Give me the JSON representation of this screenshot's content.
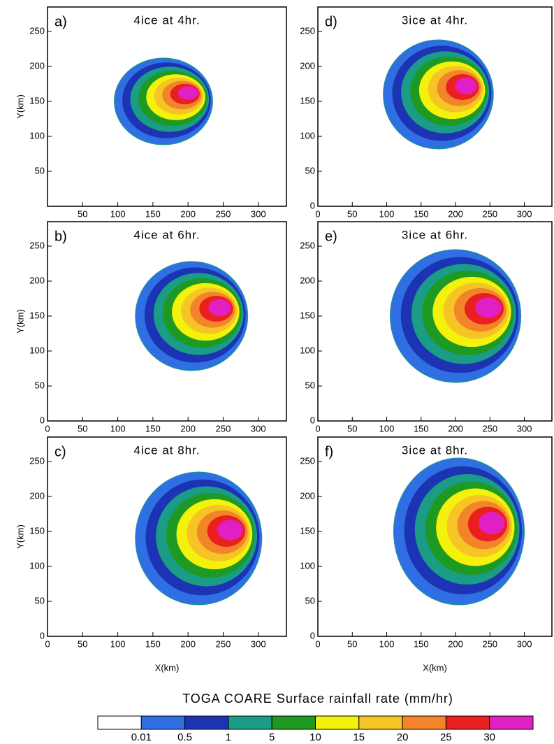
{
  "chart_data": [
    {
      "type": "contour",
      "label": "a)",
      "title": "4ice at 4hr.",
      "ylabel": "Y(km)",
      "xlim": [
        0,
        340
      ],
      "ylim": [
        0,
        285
      ],
      "xticks": [
        50,
        100,
        150,
        200,
        250,
        300
      ],
      "yticks": [
        50,
        100,
        150,
        200,
        250
      ]
    },
    {
      "type": "contour",
      "label": "b)",
      "title": "4ice at 6hr.",
      "ylabel": "Y(km)",
      "xlim": [
        0,
        340
      ],
      "ylim": [
        0,
        285
      ],
      "xticks": [
        0,
        50,
        100,
        150,
        200,
        250,
        300
      ],
      "yticks": [
        0,
        50,
        100,
        150,
        200,
        250
      ]
    },
    {
      "type": "contour",
      "label": "c)",
      "title": "4ice at 8hr.",
      "ylabel": "Y(km)",
      "xlabel": "X(km)",
      "xlim": [
        0,
        340
      ],
      "ylim": [
        0,
        285
      ],
      "xticks": [
        0,
        50,
        100,
        150,
        200,
        250,
        300
      ],
      "yticks": [
        0,
        50,
        100,
        150,
        200,
        250
      ]
    },
    {
      "type": "contour",
      "label": "d)",
      "title": "3ice at 4hr.",
      "xlim": [
        0,
        340
      ],
      "ylim": [
        0,
        285
      ],
      "xticks": [
        0,
        50,
        100,
        150,
        200,
        250,
        300
      ],
      "yticks": [
        0,
        50,
        100,
        150,
        200,
        250
      ]
    },
    {
      "type": "contour",
      "label": "e)",
      "title": "3ice at 6hr.",
      "xlim": [
        0,
        340
      ],
      "ylim": [
        0,
        285
      ],
      "xticks": [
        0,
        50,
        100,
        150,
        200,
        250,
        300
      ],
      "yticks": [
        0,
        50,
        100,
        150,
        200,
        250
      ]
    },
    {
      "type": "contour",
      "label": "f)",
      "title": "3ice at 8hr.",
      "xlabel": "X(km)",
      "xlim": [
        0,
        340
      ],
      "ylim": [
        0,
        285
      ],
      "xticks": [
        0,
        50,
        100,
        150,
        200,
        250,
        300
      ],
      "yticks": [
        0,
        50,
        100,
        150,
        200,
        250
      ]
    }
  ],
  "colorbar": {
    "title": "TOGA COARE Surface rainfall rate (mm/hr)",
    "levels": [
      0.01,
      0.5,
      1,
      5,
      10,
      15,
      20,
      25,
      30
    ],
    "colors": [
      "#ffffff",
      "#2f6fe3",
      "#1c34b4",
      "#1a9c86",
      "#1e9a22",
      "#f4f20c",
      "#f6c424",
      "#f2852a",
      "#ea2020",
      "#e020c4"
    ]
  }
}
